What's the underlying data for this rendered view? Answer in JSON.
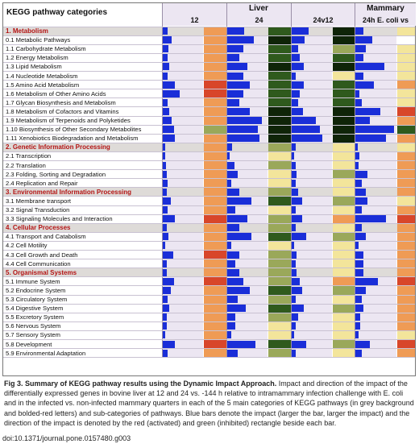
{
  "header": {
    "categories_label": "KEGG pathway categories",
    "liver_label": "Liver",
    "mammary_label": "Mammary",
    "col_12": "12",
    "col_24": "24",
    "col_24v12": "24v12",
    "col_mam": "24h E. coli vs CTR"
  },
  "colors": {
    "bar": "#1a2ed8",
    "cell_bg": "#ece6f2",
    "cat_bg": "#dedbd8",
    "cat_text": "#b41414",
    "red": "#d8462a",
    "orange": "#ef9b55",
    "yellow": "#f3e59b",
    "olive": "#9aa85a",
    "dkgreen": "#2f5a1d",
    "black": "#0f2408"
  },
  "rows": [
    {
      "label": "1. Metabolism",
      "cat": true,
      "v": [
        0.12,
        0.42,
        0.42,
        0.2
      ],
      "c": [
        "orange",
        "dkgreen",
        "black",
        "yellow"
      ]
    },
    {
      "label": "0.1 Metabolic Pathways",
      "cat": false,
      "v": [
        0.22,
        0.65,
        0.32,
        0.42
      ],
      "c": [
        "orange",
        "black",
        "black",
        "white"
      ]
    },
    {
      "label": "1.1 Carbohydrate Metabolism",
      "cat": false,
      "v": [
        0.14,
        0.4,
        0.15,
        0.25
      ],
      "c": [
        "orange",
        "dkgreen",
        "olive",
        "yellow"
      ]
    },
    {
      "label": "1.2 Energy Metabolism",
      "cat": false,
      "v": [
        0.12,
        0.3,
        0.2,
        0.2
      ],
      "c": [
        "orange",
        "dkgreen",
        "dkgreen",
        "yellow"
      ]
    },
    {
      "label": "1.3 Lipid Metabolism",
      "cat": false,
      "v": [
        0.16,
        0.5,
        0.3,
        0.7
      ],
      "c": [
        "orange",
        "black",
        "black",
        "yellow"
      ]
    },
    {
      "label": "1.4 Nucleotide Metabolism",
      "cat": false,
      "v": [
        0.12,
        0.4,
        0.1,
        0.2
      ],
      "c": [
        "orange",
        "dkgreen",
        "yellow",
        "yellow"
      ]
    },
    {
      "label": "1.5 Amino Acid Metabolism",
      "cat": false,
      "v": [
        0.3,
        0.55,
        0.3,
        0.45
      ],
      "c": [
        "red",
        "dkgreen",
        "dkgreen",
        "orange"
      ]
    },
    {
      "label": "1.6 Metabolism of Other Amino Acids",
      "cat": false,
      "v": [
        0.42,
        0.4,
        0.2,
        0.1
      ],
      "c": [
        "red",
        "dkgreen",
        "dkgreen",
        "yellow"
      ]
    },
    {
      "label": "1.7 Glycan Biosynthesis and Metabolism",
      "cat": false,
      "v": [
        0.12,
        0.3,
        0.15,
        0.15
      ],
      "c": [
        "orange",
        "dkgreen",
        "dkgreen",
        "yellow"
      ]
    },
    {
      "label": "1.8 Metabolism of Cofactors and Vitamins",
      "cat": false,
      "v": [
        0.16,
        0.55,
        0.28,
        0.6
      ],
      "c": [
        "orange",
        "black",
        "black",
        "red"
      ]
    },
    {
      "label": "1.9 Metabolism of Terpenoids and Polyketides",
      "cat": false,
      "v": [
        0.22,
        0.85,
        0.6,
        0.35
      ],
      "c": [
        "orange",
        "black",
        "black",
        "orange"
      ]
    },
    {
      "label": "1.10 Biosynthesis of Other Secondary Metabolites",
      "cat": false,
      "v": [
        0.28,
        0.75,
        0.7,
        0.95
      ],
      "c": [
        "olive",
        "black",
        "black",
        "dkgreen"
      ]
    },
    {
      "label": "1.11 Xenobiotics Biodegradation and Metabolism",
      "cat": false,
      "v": [
        0.3,
        0.8,
        0.75,
        0.75
      ],
      "c": [
        "orange",
        "black",
        "black",
        "orange"
      ]
    },
    {
      "label": "2. Genetic Information Processing",
      "cat": true,
      "v": [
        0.05,
        0.12,
        0.1,
        0.05
      ],
      "c": [
        "orange",
        "olive",
        "yellow",
        "yellow"
      ]
    },
    {
      "label": "2.1 Transcription",
      "cat": false,
      "v": [
        0.06,
        0.05,
        0.05,
        0.1
      ],
      "c": [
        "orange",
        "yellow",
        "yellow",
        "orange"
      ]
    },
    {
      "label": "2.2 Translation",
      "cat": false,
      "v": [
        0.08,
        0.18,
        0.1,
        0.08
      ],
      "c": [
        "orange",
        "olive",
        "yellow",
        "orange"
      ]
    },
    {
      "label": "2.3 Folding, Sorting and Degradation",
      "cat": false,
      "v": [
        0.1,
        0.25,
        0.12,
        0.3
      ],
      "c": [
        "orange",
        "yellow",
        "olive",
        "orange"
      ]
    },
    {
      "label": "2.4 Replication and Repair",
      "cat": false,
      "v": [
        0.12,
        0.1,
        0.1,
        0.15
      ],
      "c": [
        "orange",
        "yellow",
        "yellow",
        "orange"
      ]
    },
    {
      "label": "3. Environmental Information Processing",
      "cat": true,
      "v": [
        0.1,
        0.3,
        0.15,
        0.25
      ],
      "c": [
        "orange",
        "olive",
        "yellow",
        "orange"
      ]
    },
    {
      "label": "3.1 Membrane transport",
      "cat": false,
      "v": [
        0.2,
        0.6,
        0.25,
        0.3
      ],
      "c": [
        "orange",
        "dkgreen",
        "olive",
        "yellow"
      ]
    },
    {
      "label": "3.2 Signal Transduction",
      "cat": false,
      "v": [
        0.12,
        0.2,
        0.1,
        0.15
      ],
      "c": [
        "orange",
        "yellow",
        "yellow",
        "orange"
      ]
    },
    {
      "label": "3.3 Signaling Molecules and Interaction",
      "cat": false,
      "v": [
        0.3,
        0.5,
        0.25,
        0.75
      ],
      "c": [
        "red",
        "olive",
        "orange",
        "red"
      ]
    },
    {
      "label": "4. Cellular Processes",
      "cat": true,
      "v": [
        0.1,
        0.3,
        0.1,
        0.15
      ],
      "c": [
        "orange",
        "olive",
        "yellow",
        "orange"
      ]
    },
    {
      "label": "4.1 Transport and Catabolism",
      "cat": false,
      "v": [
        0.14,
        0.6,
        0.35,
        0.25
      ],
      "c": [
        "orange",
        "dkgreen",
        "olive",
        "orange"
      ]
    },
    {
      "label": "4.2 Cell Motility",
      "cat": false,
      "v": [
        0.06,
        0.1,
        0.05,
        0.08
      ],
      "c": [
        "orange",
        "yellow",
        "yellow",
        "orange"
      ]
    },
    {
      "label": "4.3 Cell Growth and Death",
      "cat": false,
      "v": [
        0.25,
        0.3,
        0.12,
        0.2
      ],
      "c": [
        "red",
        "olive",
        "yellow",
        "orange"
      ]
    },
    {
      "label": "4.4 Cell Communication",
      "cat": false,
      "v": [
        0.1,
        0.2,
        0.1,
        0.2
      ],
      "c": [
        "orange",
        "olive",
        "yellow",
        "orange"
      ]
    },
    {
      "label": "5. Organismal Systems",
      "cat": true,
      "v": [
        0.1,
        0.3,
        0.12,
        0.2
      ],
      "c": [
        "orange",
        "olive",
        "yellow",
        "orange"
      ]
    },
    {
      "label": "5.1 Immune System",
      "cat": false,
      "v": [
        0.28,
        0.4,
        0.2,
        0.55
      ],
      "c": [
        "red",
        "olive",
        "orange",
        "red"
      ]
    },
    {
      "label": "5.2 Endocrine System",
      "cat": false,
      "v": [
        0.2,
        0.55,
        0.25,
        0.25
      ],
      "c": [
        "orange",
        "dkgreen",
        "olive",
        "orange"
      ]
    },
    {
      "label": "5.3 Circulatory System",
      "cat": false,
      "v": [
        0.12,
        0.25,
        0.1,
        0.15
      ],
      "c": [
        "orange",
        "olive",
        "yellow",
        "orange"
      ]
    },
    {
      "label": "5.4 Digestive System",
      "cat": false,
      "v": [
        0.16,
        0.45,
        0.3,
        0.2
      ],
      "c": [
        "orange",
        "dkgreen",
        "olive",
        "orange"
      ]
    },
    {
      "label": "5.5 Excretory System",
      "cat": false,
      "v": [
        0.1,
        0.2,
        0.15,
        0.12
      ],
      "c": [
        "orange",
        "olive",
        "yellow",
        "orange"
      ]
    },
    {
      "label": "5.6 Nervous System",
      "cat": false,
      "v": [
        0.1,
        0.2,
        0.1,
        0.12
      ],
      "c": [
        "orange",
        "yellow",
        "yellow",
        "orange"
      ]
    },
    {
      "label": "5.7 Sensory System",
      "cat": false,
      "v": [
        0.05,
        0.1,
        0.05,
        0.08
      ],
      "c": [
        "orange",
        "yellow",
        "yellow",
        "yellow"
      ]
    },
    {
      "label": "5.8 Development",
      "cat": false,
      "v": [
        0.3,
        0.7,
        0.35,
        0.35
      ],
      "c": [
        "red",
        "dkgreen",
        "olive",
        "red"
      ]
    },
    {
      "label": "5.9 Environmental Adaptation",
      "cat": false,
      "v": [
        0.12,
        0.25,
        0.1,
        0.15
      ],
      "c": [
        "orange",
        "olive",
        "yellow",
        "orange"
      ]
    }
  ],
  "caption": {
    "fig_label": "Fig 3. Summary of KEGG pathway results using the Dynamic Impact Approach.",
    "text": "Impact and direction of the impact of the differentially expressed genes in bovine liver at 12 and 24 vs. -144 h relative to intramammary infection challenge with E. coli and in the infected vs. non-infected mammary quarters in each of the 5 main categories of KEGG pathways (in grey background and bolded-red letters) and sub-categories of pathways. Blue bars denote the impact (larger the bar, larger the impact) and the direction of the impact is denoted by the red (activated) and green (inhibited) rectangle beside each bar."
  },
  "doi": "doi:10.1371/journal.pone.0157480.g003"
}
